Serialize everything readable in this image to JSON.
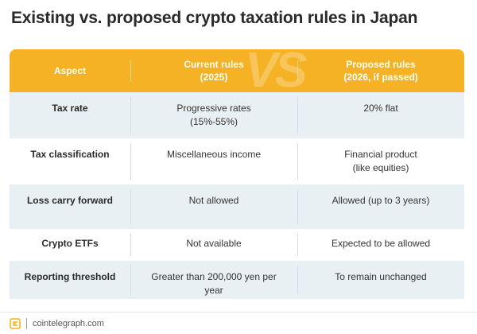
{
  "title": "Existing vs. proposed crypto taxation rules in Japan",
  "colors": {
    "header": "#f4b224",
    "shaded_row": "#e9f0f3",
    "text": "#333333"
  },
  "header": {
    "aspect": "Aspect",
    "current_line1": "Current rules",
    "current_line2": "(2025)",
    "watermark": "VS",
    "proposed_line1": "Proposed rules",
    "proposed_line2": "(2026, if passed)"
  },
  "rows": [
    {
      "aspect": "Tax rate",
      "current": [
        "Progressive rates",
        "(15%-55%)"
      ],
      "proposed": [
        "20% flat"
      ]
    },
    {
      "aspect": "Tax classification",
      "current": [
        "Miscellaneous income"
      ],
      "proposed": [
        "Financial product",
        "(like equities)"
      ]
    },
    {
      "aspect": "Loss carry forward",
      "current": [
        "Not allowed"
      ],
      "proposed": [
        "Allowed (up to 3 years)"
      ]
    },
    {
      "aspect": "Crypto ETFs",
      "current": [
        "Not available"
      ],
      "proposed": [
        "Expected to be allowed"
      ]
    },
    {
      "aspect": "Reporting threshold",
      "current": [
        "Greater than 200,000 yen per",
        "year"
      ],
      "proposed": [
        "To remain unchanged"
      ]
    }
  ],
  "footer": {
    "logo_icon": "cointelegraph-logo-icon",
    "source": "cointelegraph.com"
  }
}
